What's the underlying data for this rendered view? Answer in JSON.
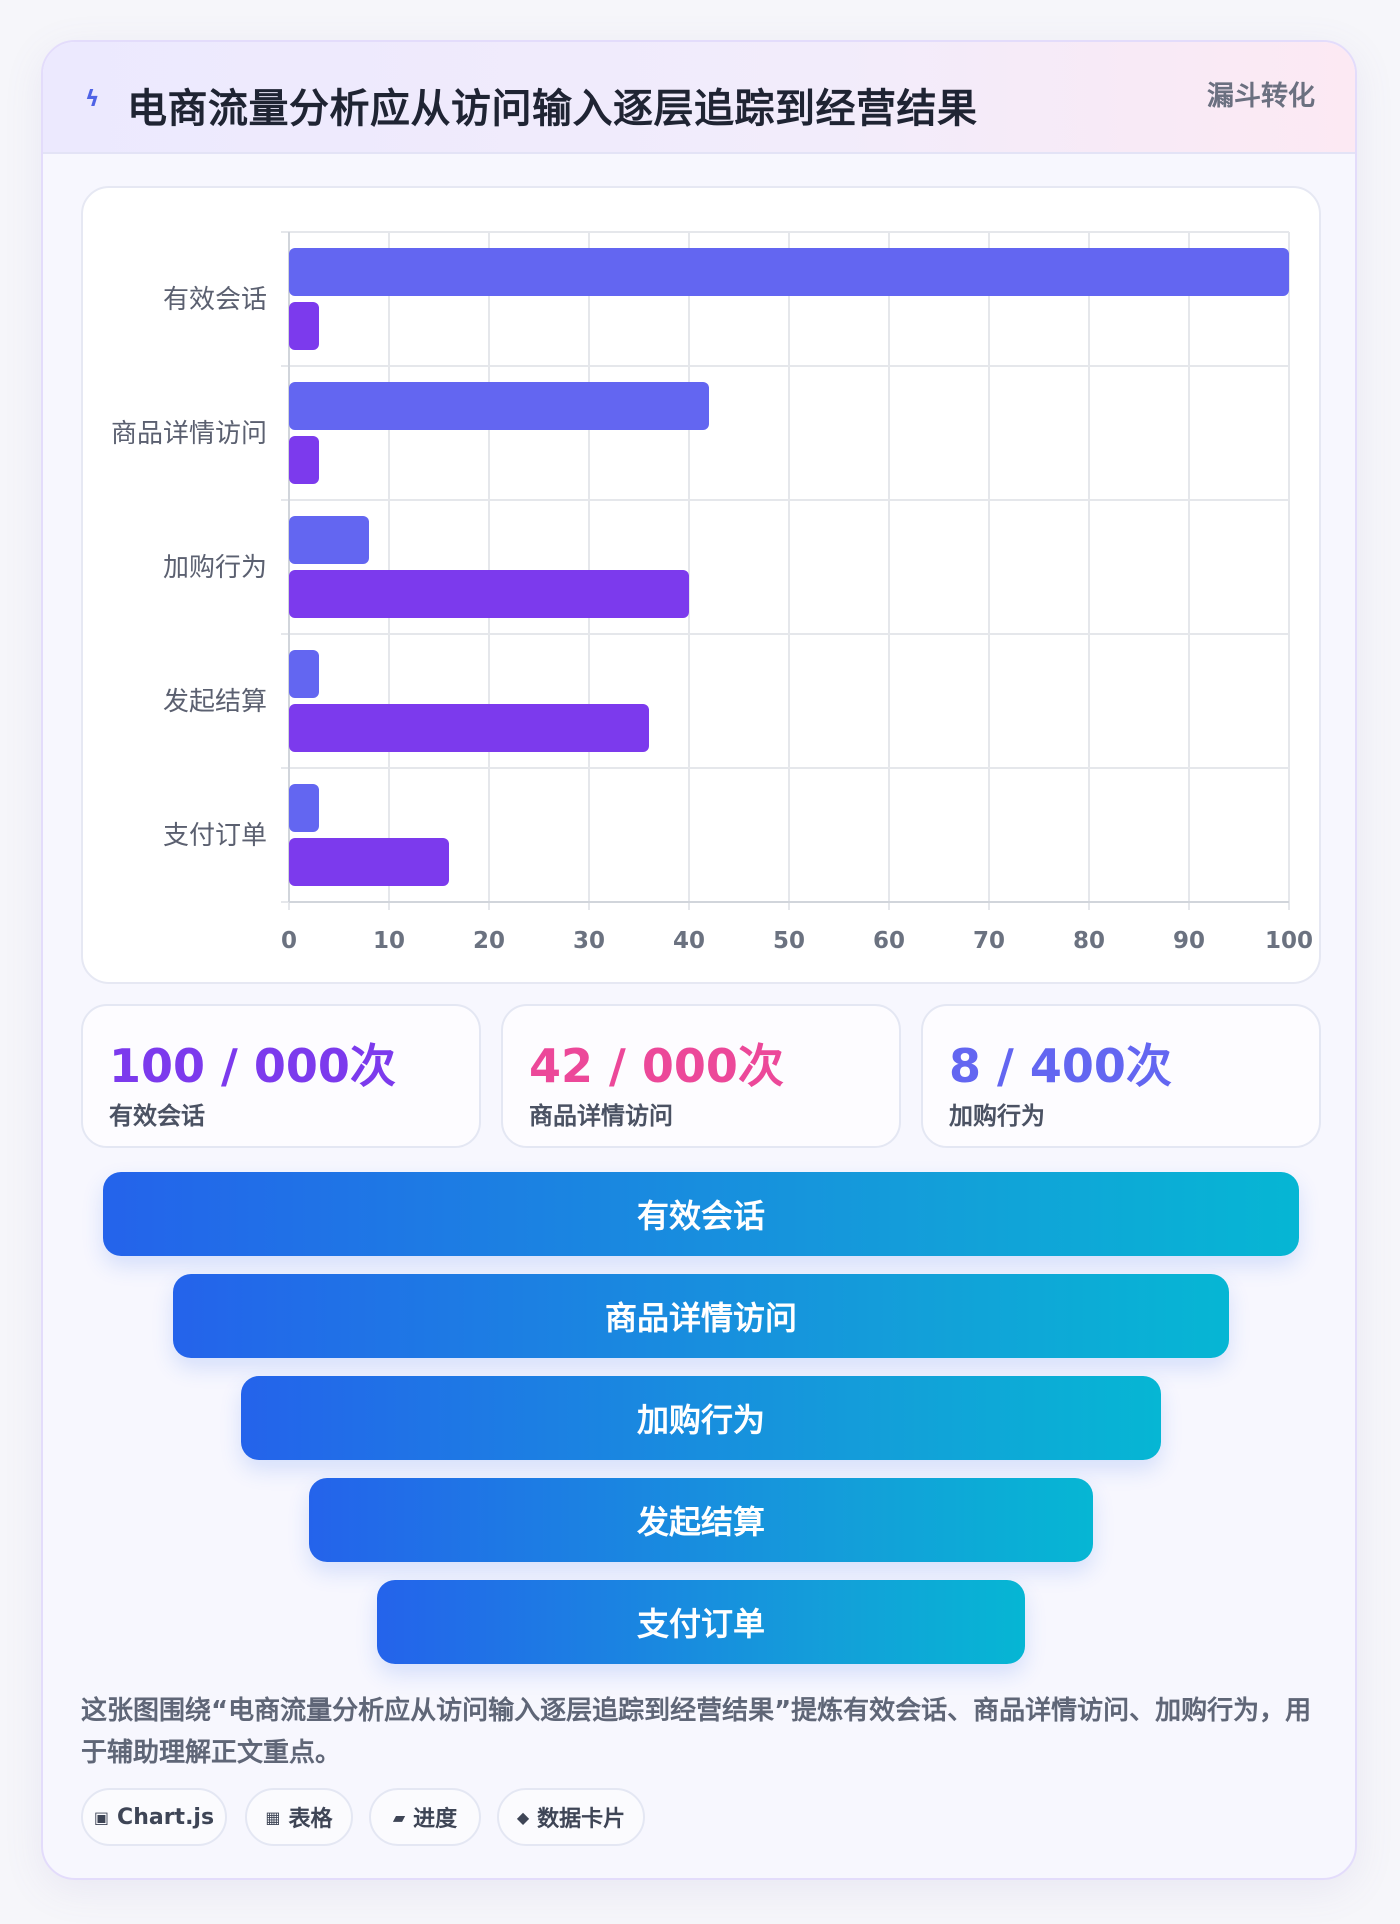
{
  "header": {
    "icon": "lightning-icon",
    "title": "电商流量分析应从访问输入逐层追踪到经营结果",
    "tag": "漏斗转化"
  },
  "chart_data": {
    "type": "bar",
    "orientation": "horizontal",
    "categories": [
      "有效会话",
      "商品详情访问",
      "加购行为",
      "发起结算",
      "支付订单"
    ],
    "series": [
      {
        "values": [
          100,
          42,
          8,
          3,
          3
        ],
        "color": "#6366f1"
      },
      {
        "values": [
          3,
          3,
          40,
          36,
          16
        ],
        "color": "#7c3aed"
      }
    ],
    "xlim": [
      0,
      100
    ],
    "x_ticks": [
      "0",
      "10",
      "20",
      "30",
      "40",
      "50",
      "60",
      "70",
      "80",
      "90",
      "100"
    ],
    "grid": true,
    "legend": "none"
  },
  "stats": [
    {
      "value": "100 / 000次",
      "label": "有效会话",
      "color": "#7c3aed"
    },
    {
      "value": "42 / 000次",
      "label": "商品详情访问",
      "color": "#ec4899"
    },
    {
      "value": "8 / 400次",
      "label": "加购行为",
      "color": "#6366f1"
    }
  ],
  "funnel": [
    {
      "label": "有效会话"
    },
    {
      "label": "商品详情访问"
    },
    {
      "label": "加购行为"
    },
    {
      "label": "发起结算"
    },
    {
      "label": "支付订单"
    }
  ],
  "caption": "这张图围绕“电商流量分析应从访问输入逐层追踪到经营结果”提炼有效会话、商品详情访问、加购行为，用于辅助理解正文重点。",
  "chips": [
    {
      "icon": "▣",
      "label": "Chart.js"
    },
    {
      "icon": "▦",
      "label": "表格"
    },
    {
      "icon": "▰",
      "label": "进度"
    },
    {
      "icon": "◆",
      "label": "数据卡片"
    }
  ]
}
